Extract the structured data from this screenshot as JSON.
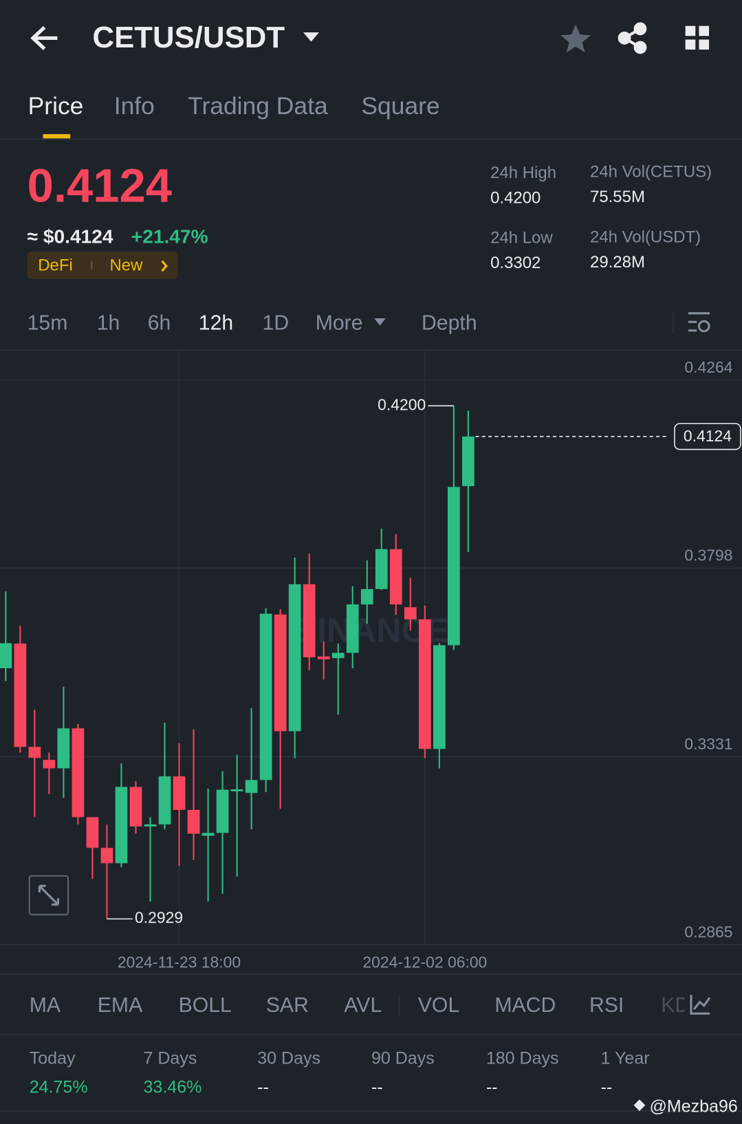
{
  "header": {
    "title": "CETUS/USDT"
  },
  "tabs": [
    "Price",
    "Info",
    "Trading Data",
    "Square"
  ],
  "price": {
    "last": "0.4124",
    "usd": "≈ $0.4124",
    "change": "+21.47%",
    "tags": [
      "DeFi",
      "New"
    ]
  },
  "stats": [
    {
      "label": "24h High",
      "value": "0.4200"
    },
    {
      "label": "24h Vol(CETUS)",
      "value": "75.55M"
    },
    {
      "label": "24h Low",
      "value": "0.3302"
    },
    {
      "label": "24h Vol(USDT)",
      "value": "29.28M"
    }
  ],
  "intervals": [
    "15m",
    "1h",
    "6h",
    "12h",
    "1D",
    "More",
    "Depth"
  ],
  "chart_data": {
    "type": "candlestick",
    "watermark": "BINANCE",
    "categories": [
      null,
      null,
      null,
      null,
      null,
      null,
      null,
      null,
      null,
      null,
      null,
      null,
      "2024-11-23 18:00",
      null,
      null,
      null,
      null,
      null,
      null,
      null,
      null,
      null,
      null,
      null,
      null,
      null,
      null,
      null,
      null,
      "2024-12-02 06:00",
      null,
      null,
      null
    ],
    "open": [
      0.355,
      0.3611,
      0.3355,
      0.3323,
      0.3302,
      0.3401,
      0.3181,
      0.3105,
      0.3067,
      0.3256,
      0.3158,
      0.3163,
      0.3282,
      0.3199,
      0.3135,
      0.3142,
      0.3245,
      0.3241,
      0.3273,
      0.3683,
      0.3394,
      0.3758,
      0.3579,
      0.3575,
      0.3588,
      0.3708,
      0.3746,
      0.3845,
      0.3701,
      0.3671,
      0.335,
      0.3607,
      0.4001
    ],
    "high": [
      0.374,
      0.3655,
      0.3447,
      0.3341,
      0.3504,
      0.3412,
      0.3181,
      0.3163,
      0.3314,
      0.327,
      0.3181,
      0.3415,
      0.3364,
      0.3399,
      0.3252,
      0.3295,
      0.3336,
      0.3451,
      0.3699,
      0.3696,
      0.3824,
      0.3834,
      0.3616,
      0.3611,
      0.3753,
      0.3817,
      0.3896,
      0.3882,
      0.3774,
      0.3705,
      0.3612,
      0.42,
      0.4188
    ],
    "low": [
      0.3518,
      0.3341,
      0.3181,
      0.3238,
      0.3229,
      0.3163,
      0.3028,
      0.2929,
      0.3057,
      0.314,
      0.2972,
      0.3151,
      0.306,
      0.3075,
      0.2972,
      0.2991,
      0.3034,
      0.3151,
      0.3243,
      0.3202,
      0.3327,
      0.3545,
      0.3522,
      0.3435,
      0.355,
      0.366,
      0.3744,
      0.3682,
      0.3643,
      0.3327,
      0.3302,
      0.3595,
      0.3838
    ],
    "close": [
      0.3612,
      0.3355,
      0.3328,
      0.3302,
      0.3401,
      0.3181,
      0.3105,
      0.3067,
      0.3256,
      0.3158,
      0.3163,
      0.3282,
      0.3199,
      0.314,
      0.3142,
      0.3249,
      0.325,
      0.3273,
      0.3685,
      0.3394,
      0.3758,
      0.3577,
      0.3572,
      0.3588,
      0.3708,
      0.3746,
      0.3845,
      0.3708,
      0.3671,
      0.335,
      0.3607,
      0.3999,
      0.4124
    ],
    "up_color": "#2ebd85",
    "down_color": "#f6465d",
    "ylim": [
      0.2865,
      0.4264
    ],
    "yticks": [
      0.4264,
      0.3798,
      0.3331,
      0.2865
    ],
    "grid": true,
    "high_marker": {
      "value": 0.42,
      "label": "0.4200"
    },
    "low_marker": {
      "value": 0.2929,
      "label": "0.2929"
    },
    "last_price": {
      "value": 0.4124,
      "label": "0.4124"
    }
  },
  "indicators": [
    "MA",
    "EMA",
    "BOLL",
    "SAR",
    "AVL",
    "VOL",
    "MACD",
    "RSI",
    "KD"
  ],
  "performance": [
    {
      "period": "Today",
      "value": "24.75%"
    },
    {
      "period": "7 Days",
      "value": "33.46%"
    },
    {
      "period": "30 Days",
      "value": "--"
    },
    {
      "period": "90 Days",
      "value": "--"
    },
    {
      "period": "180 Days",
      "value": "--"
    },
    {
      "period": "1 Year",
      "value": "--"
    }
  ],
  "watermark": "@Mezba96"
}
